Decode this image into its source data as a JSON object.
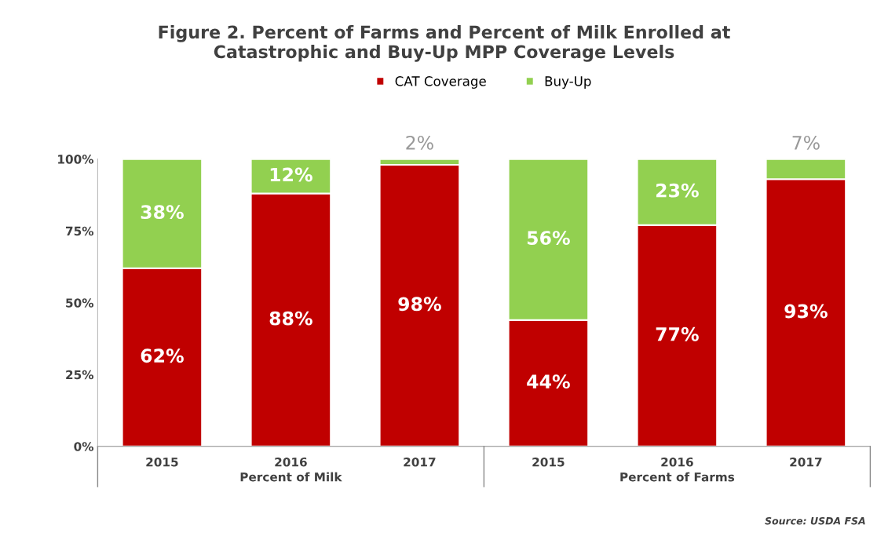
{
  "chart_data": {
    "type": "bar",
    "stacked": true,
    "title": "Figure 2. Percent of Farms and Percent of Milk Enrolled at\nCatastrophic and Buy-Up MPP Coverage Levels",
    "categories": [
      "2015",
      "2016",
      "2017",
      "2015",
      "2016",
      "2017"
    ],
    "series": [
      {
        "name": "CAT Coverage",
        "color": "#c00000",
        "values": [
          62,
          88,
          98,
          44,
          77,
          93
        ],
        "value_labels": [
          "62%",
          "88%",
          "98%",
          "44%",
          "77%",
          "93%"
        ]
      },
      {
        "name": "Buy-Up",
        "color": "#92d050",
        "values": [
          38,
          12,
          2,
          56,
          23,
          7
        ],
        "value_labels": [
          "38%",
          "12%",
          "2%",
          "56%",
          "23%",
          "7%"
        ]
      }
    ],
    "ylim": [
      0,
      100
    ],
    "yticks": [
      {
        "value": 0,
        "label": "0%"
      },
      {
        "value": 25,
        "label": "25%"
      },
      {
        "value": 50,
        "label": "50%"
      },
      {
        "value": 75,
        "label": "75%"
      },
      {
        "value": 100,
        "label": "100%"
      }
    ],
    "legend": "top",
    "grid": false,
    "annotations": [
      "Percent of Milk",
      "Percent of Farms",
      "Source: USDA FSA"
    ]
  }
}
